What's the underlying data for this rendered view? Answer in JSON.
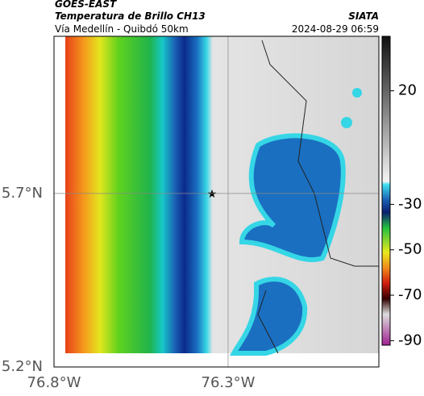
{
  "header": {
    "source": "GOES-EAST",
    "title": "Temperatura de Brillo CH13",
    "subtitle": "Vía Medellín - Quibdó 50km",
    "credit": "SIATA",
    "timestamp": "2024-08-29 06:59"
  },
  "map": {
    "xlim": [
      -76.8,
      -75.867
    ],
    "ylim": [
      5.2,
      6.153
    ],
    "xticks": [
      {
        "value": -76.8,
        "label": "76.8°W"
      },
      {
        "value": -76.3,
        "label": "76.3°W"
      }
    ],
    "yticks": [
      {
        "value": 5.2,
        "label": "5.2°N"
      },
      {
        "value": 5.7,
        "label": "5.7°N"
      }
    ]
  },
  "colorbar": {
    "lim": [
      -92,
      44
    ],
    "ticks": [
      20,
      -30,
      -50,
      -70,
      -90
    ]
  }
}
